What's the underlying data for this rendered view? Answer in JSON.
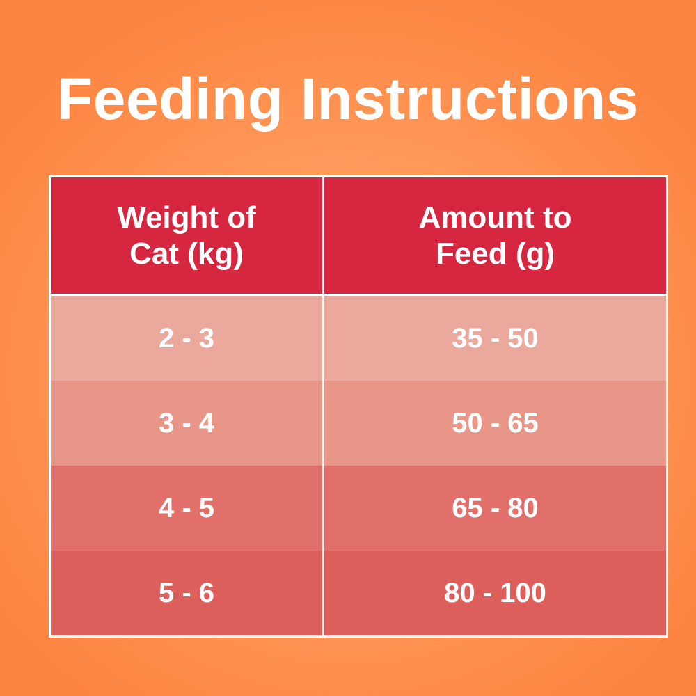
{
  "title": "Feeding Instructions",
  "table": {
    "headers": [
      "Weight of Cat (kg)",
      "Amount to Feed (g)"
    ],
    "header_lines": [
      [
        "Weight of",
        "Cat (kg)"
      ],
      [
        "Amount to",
        "Feed (g)"
      ]
    ],
    "rows": [
      [
        "2 - 3",
        "35 - 50"
      ],
      [
        "3 - 4",
        "50 - 65"
      ],
      [
        "4 - 5",
        "65 - 80"
      ],
      [
        "5 - 6",
        "80 - 100"
      ]
    ]
  },
  "colors": {
    "background": "#fd8440",
    "header": "#d62640",
    "row_1": "#eba89c",
    "row_2": "#e89688",
    "row_3": "#e1706a",
    "row_4": "#dc5f5c",
    "text": "#ffffff"
  }
}
